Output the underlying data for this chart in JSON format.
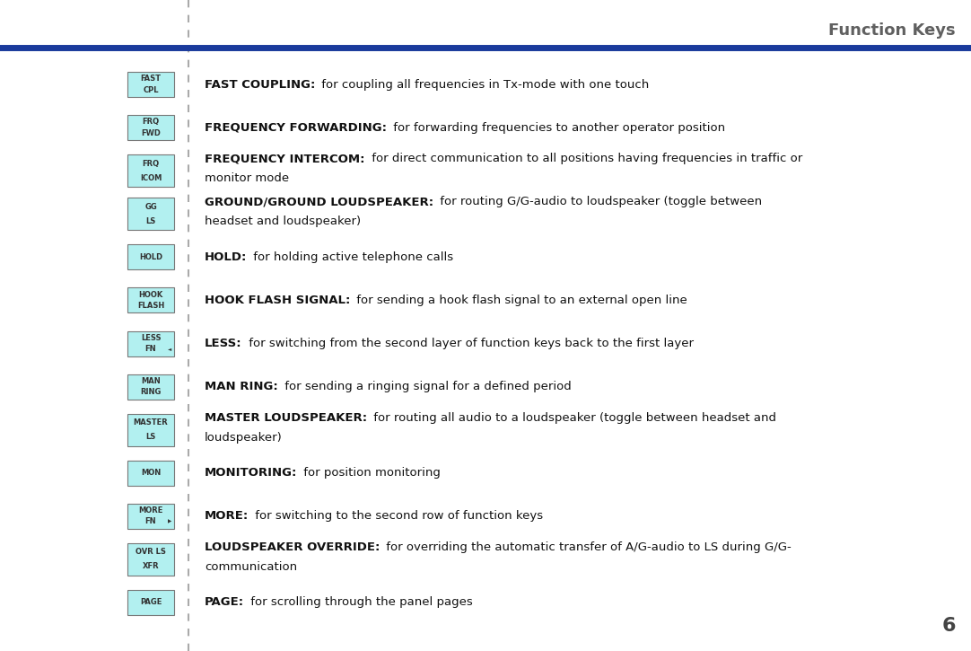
{
  "title": "Function Keys",
  "title_color": "#606060",
  "page_number": "6",
  "header_line_color": "#1a3a9c",
  "background_color": "#ffffff",
  "button_bg": "#b2f0f0",
  "button_border": "#777777",
  "button_text_color": "#333333",
  "items": [
    {
      "button_lines": [
        "FAST",
        "CPL"
      ],
      "arrow": null,
      "bold_text": "FAST COUPLING:",
      "normal_text": "for coupling all frequencies in Tx-mode with one touch",
      "two_line": false
    },
    {
      "button_lines": [
        "FRQ",
        "FWD"
      ],
      "arrow": null,
      "bold_text": "FREQUENCY FORWARDING:",
      "normal_text": "for forwarding frequencies to another operator position",
      "two_line": false
    },
    {
      "button_lines": [
        "FRQ",
        "ICOM"
      ],
      "arrow": null,
      "bold_text": "FREQUENCY INTERCOM:",
      "normal_text": "for direct communication to all positions having frequencies in traffic or\nmonitor mode",
      "two_line": true
    },
    {
      "button_lines": [
        "GG",
        "LS"
      ],
      "arrow": null,
      "bold_text": "GROUND/GROUND LOUDSPEAKER:",
      "normal_text": "for routing G/G-audio to loudspeaker (toggle between\nheadset and loudspeaker)",
      "two_line": true
    },
    {
      "button_lines": [
        "HOLD"
      ],
      "arrow": null,
      "bold_text": "HOLD:",
      "normal_text": "for holding active telephone calls",
      "two_line": false
    },
    {
      "button_lines": [
        "HOOK",
        "FLASH"
      ],
      "arrow": null,
      "bold_text": "HOOK FLASH SIGNAL:",
      "normal_text": "for sending a hook flash signal to an external open line",
      "two_line": false
    },
    {
      "button_lines": [
        "LESS",
        "FN"
      ],
      "arrow": "left",
      "bold_text": "LESS:",
      "normal_text": "for switching from the second layer of function keys back to the first layer",
      "two_line": false
    },
    {
      "button_lines": [
        "MAN",
        "RING"
      ],
      "arrow": null,
      "bold_text": "MAN RING:",
      "normal_text": "for sending a ringing signal for a defined period",
      "two_line": false
    },
    {
      "button_lines": [
        "MASTER",
        "LS"
      ],
      "arrow": null,
      "bold_text": "MASTER LOUDSPEAKER:",
      "normal_text": "for routing all audio to a loudspeaker (toggle between headset and\nloudspeaker)",
      "two_line": true
    },
    {
      "button_lines": [
        "MON"
      ],
      "arrow": null,
      "bold_text": "MONITORING:",
      "normal_text": "for position monitoring",
      "two_line": false
    },
    {
      "button_lines": [
        "MORE",
        "FN"
      ],
      "arrow": "right",
      "bold_text": "MORE:",
      "normal_text": "for switching to the second row of function keys",
      "two_line": false
    },
    {
      "button_lines": [
        "OVR LS",
        "XFR"
      ],
      "arrow": null,
      "bold_text": "LOUDSPEAKER OVERRIDE:",
      "normal_text": "for overriding the automatic transfer of A/G-audio to LS during G/G-\ncommunication",
      "two_line": true
    },
    {
      "button_lines": [
        "PAGE"
      ],
      "arrow": null,
      "bold_text": "PAGE:",
      "normal_text": "for scrolling through the panel pages",
      "two_line": false
    }
  ]
}
